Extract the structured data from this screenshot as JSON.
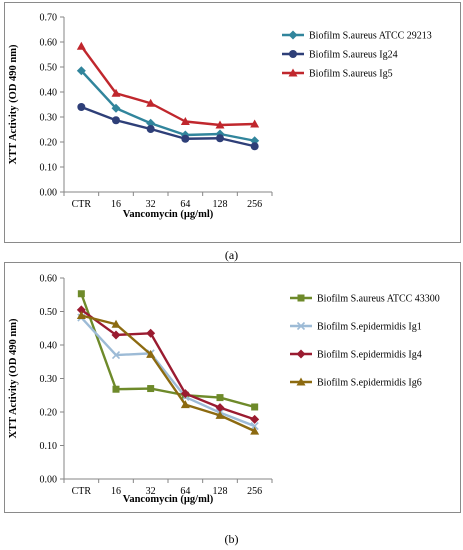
{
  "captions": [
    "(a)",
    "(b)"
  ],
  "chart_data": [
    {
      "type": "line",
      "panel": "(a)",
      "categories": [
        "CTR",
        "16",
        "32",
        "64",
        "128",
        "256"
      ],
      "xlabel": "Vancomycin (µg/ml)",
      "ylabel": "XTT Activity (OD 490 nm)",
      "ylim": [
        0,
        0.7
      ],
      "yticks": [
        "0.00",
        "0.10",
        "0.20",
        "0.30",
        "0.40",
        "0.50",
        "0.60",
        "0.70"
      ],
      "legend_position": "right",
      "grid": false,
      "series": [
        {
          "name": "Biofilm S.aureus ATCC 29213",
          "color": "#31859c",
          "marker": "diamond",
          "values": [
            0.485,
            0.335,
            0.275,
            0.228,
            0.232,
            0.205
          ]
        },
        {
          "name": "Biofilm S.aureus Ig24",
          "color": "#2e3f78",
          "marker": "circle",
          "values": [
            0.34,
            0.287,
            0.252,
            0.213,
            0.215,
            0.183
          ]
        },
        {
          "name": "Biofilm S.aureus Ig5",
          "color": "#c0272d",
          "marker": "triangle",
          "values": [
            0.583,
            0.395,
            0.355,
            0.282,
            0.268,
            0.272
          ]
        }
      ]
    },
    {
      "type": "line",
      "panel": "(b)",
      "categories": [
        "CTR",
        "16",
        "32",
        "64",
        "128",
        "256"
      ],
      "xlabel": "Vancomycin (µg/ml)",
      "ylabel": "XTT Activity (OD 490 nm)",
      "ylim": [
        0,
        0.6
      ],
      "yticks": [
        "0.00",
        "0.10",
        "0.20",
        "0.30",
        "0.40",
        "0.50",
        "0.60"
      ],
      "legend_position": "right",
      "grid": false,
      "series": [
        {
          "name": "Biofilm S.aureus ATCC 43300",
          "color": "#6e8a2a",
          "marker": "square",
          "values": [
            0.553,
            0.268,
            0.27,
            0.25,
            0.243,
            0.215
          ]
        },
        {
          "name": "Biofilm S.epidermidis Ig1",
          "color": "#9dbbd6",
          "marker": "x",
          "values": [
            0.482,
            0.37,
            0.375,
            0.245,
            0.198,
            0.158
          ]
        },
        {
          "name": "Biofilm S.epidermidis Ig4",
          "color": "#9a1b30",
          "marker": "diamond",
          "values": [
            0.505,
            0.43,
            0.435,
            0.255,
            0.213,
            0.178
          ]
        },
        {
          "name": "Biofilm S.epidermidis Ig6",
          "color": "#8c6a10",
          "marker": "triangle",
          "values": [
            0.488,
            0.462,
            0.372,
            0.222,
            0.19,
            0.143
          ]
        }
      ]
    }
  ]
}
